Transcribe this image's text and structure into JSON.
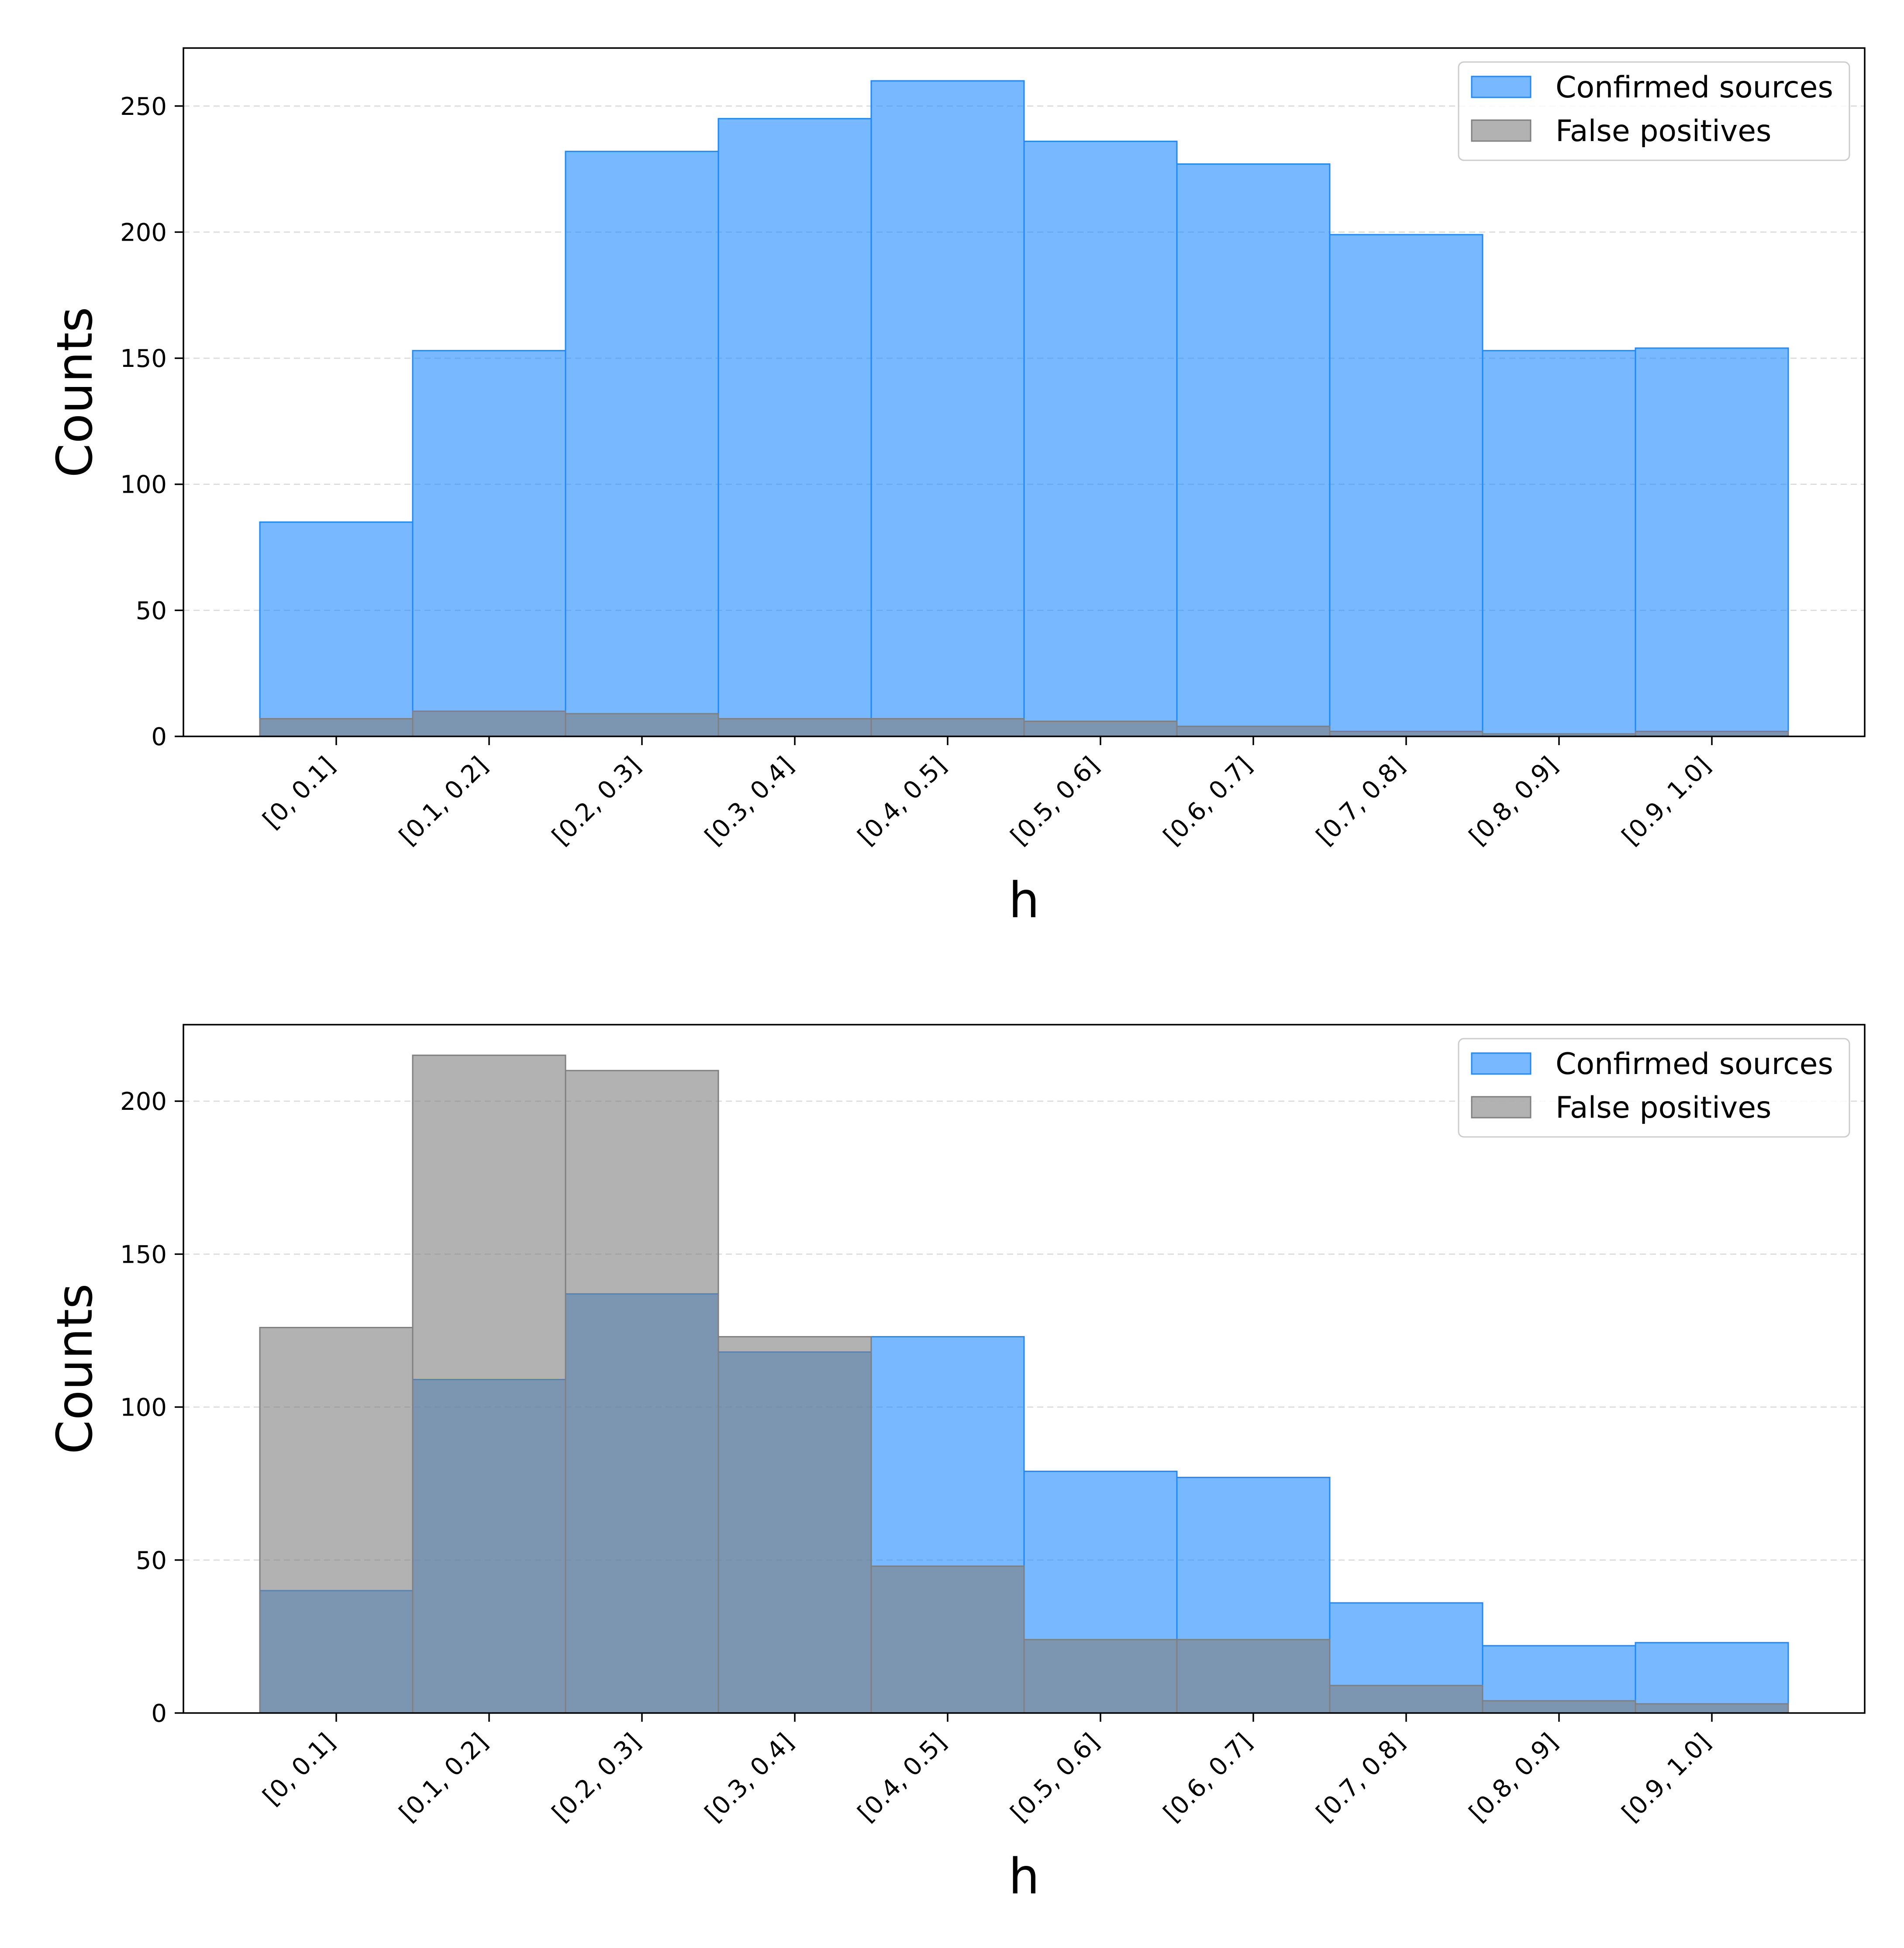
{
  "chart_data": [
    {
      "type": "bar",
      "title": "",
      "xlabel": "h",
      "ylabel": "Counts",
      "ylim": [
        0,
        273
      ],
      "yticks": [
        0,
        50,
        100,
        150,
        200,
        250
      ],
      "grid": "y-dashed",
      "legend_position": "top-right",
      "categories": [
        "[0, 0.1]",
        "[0.1, 0.2]",
        "[0.2, 0.3]",
        "[0.3, 0.4]",
        "[0.4, 0.5]",
        "[0.5, 0.6]",
        "[0.6, 0.7]",
        "[0.7, 0.8]",
        "[0.8, 0.9]",
        "[0.9, 1.0]"
      ],
      "series": [
        {
          "name": "Confirmed sources",
          "color": "#1E88FF",
          "values": [
            85,
            153,
            232,
            245,
            260,
            236,
            227,
            199,
            153,
            154
          ]
        },
        {
          "name": "False positives",
          "color": "#7F7F7F",
          "values": [
            7,
            10,
            9,
            7,
            7,
            6,
            4,
            2,
            1,
            2
          ]
        }
      ]
    },
    {
      "type": "bar",
      "title": "",
      "xlabel": "h",
      "ylabel": "Counts",
      "ylim": [
        0,
        225
      ],
      "yticks": [
        0,
        50,
        100,
        150,
        200
      ],
      "grid": "y-dashed",
      "legend_position": "top-right",
      "categories": [
        "[0, 0.1]",
        "[0.1, 0.2]",
        "[0.2, 0.3]",
        "[0.3, 0.4]",
        "[0.4, 0.5]",
        "[0.5, 0.6]",
        "[0.6, 0.7]",
        "[0.7, 0.8]",
        "[0.8, 0.9]",
        "[0.9, 1.0]"
      ],
      "series": [
        {
          "name": "Confirmed sources",
          "color": "#1E88FF",
          "values": [
            40,
            109,
            137,
            118,
            123,
            79,
            77,
            36,
            22,
            23
          ]
        },
        {
          "name": "False positives",
          "color": "#7F7F7F",
          "values": [
            126,
            215,
            210,
            123,
            48,
            24,
            24,
            9,
            4,
            3
          ]
        }
      ]
    }
  ]
}
